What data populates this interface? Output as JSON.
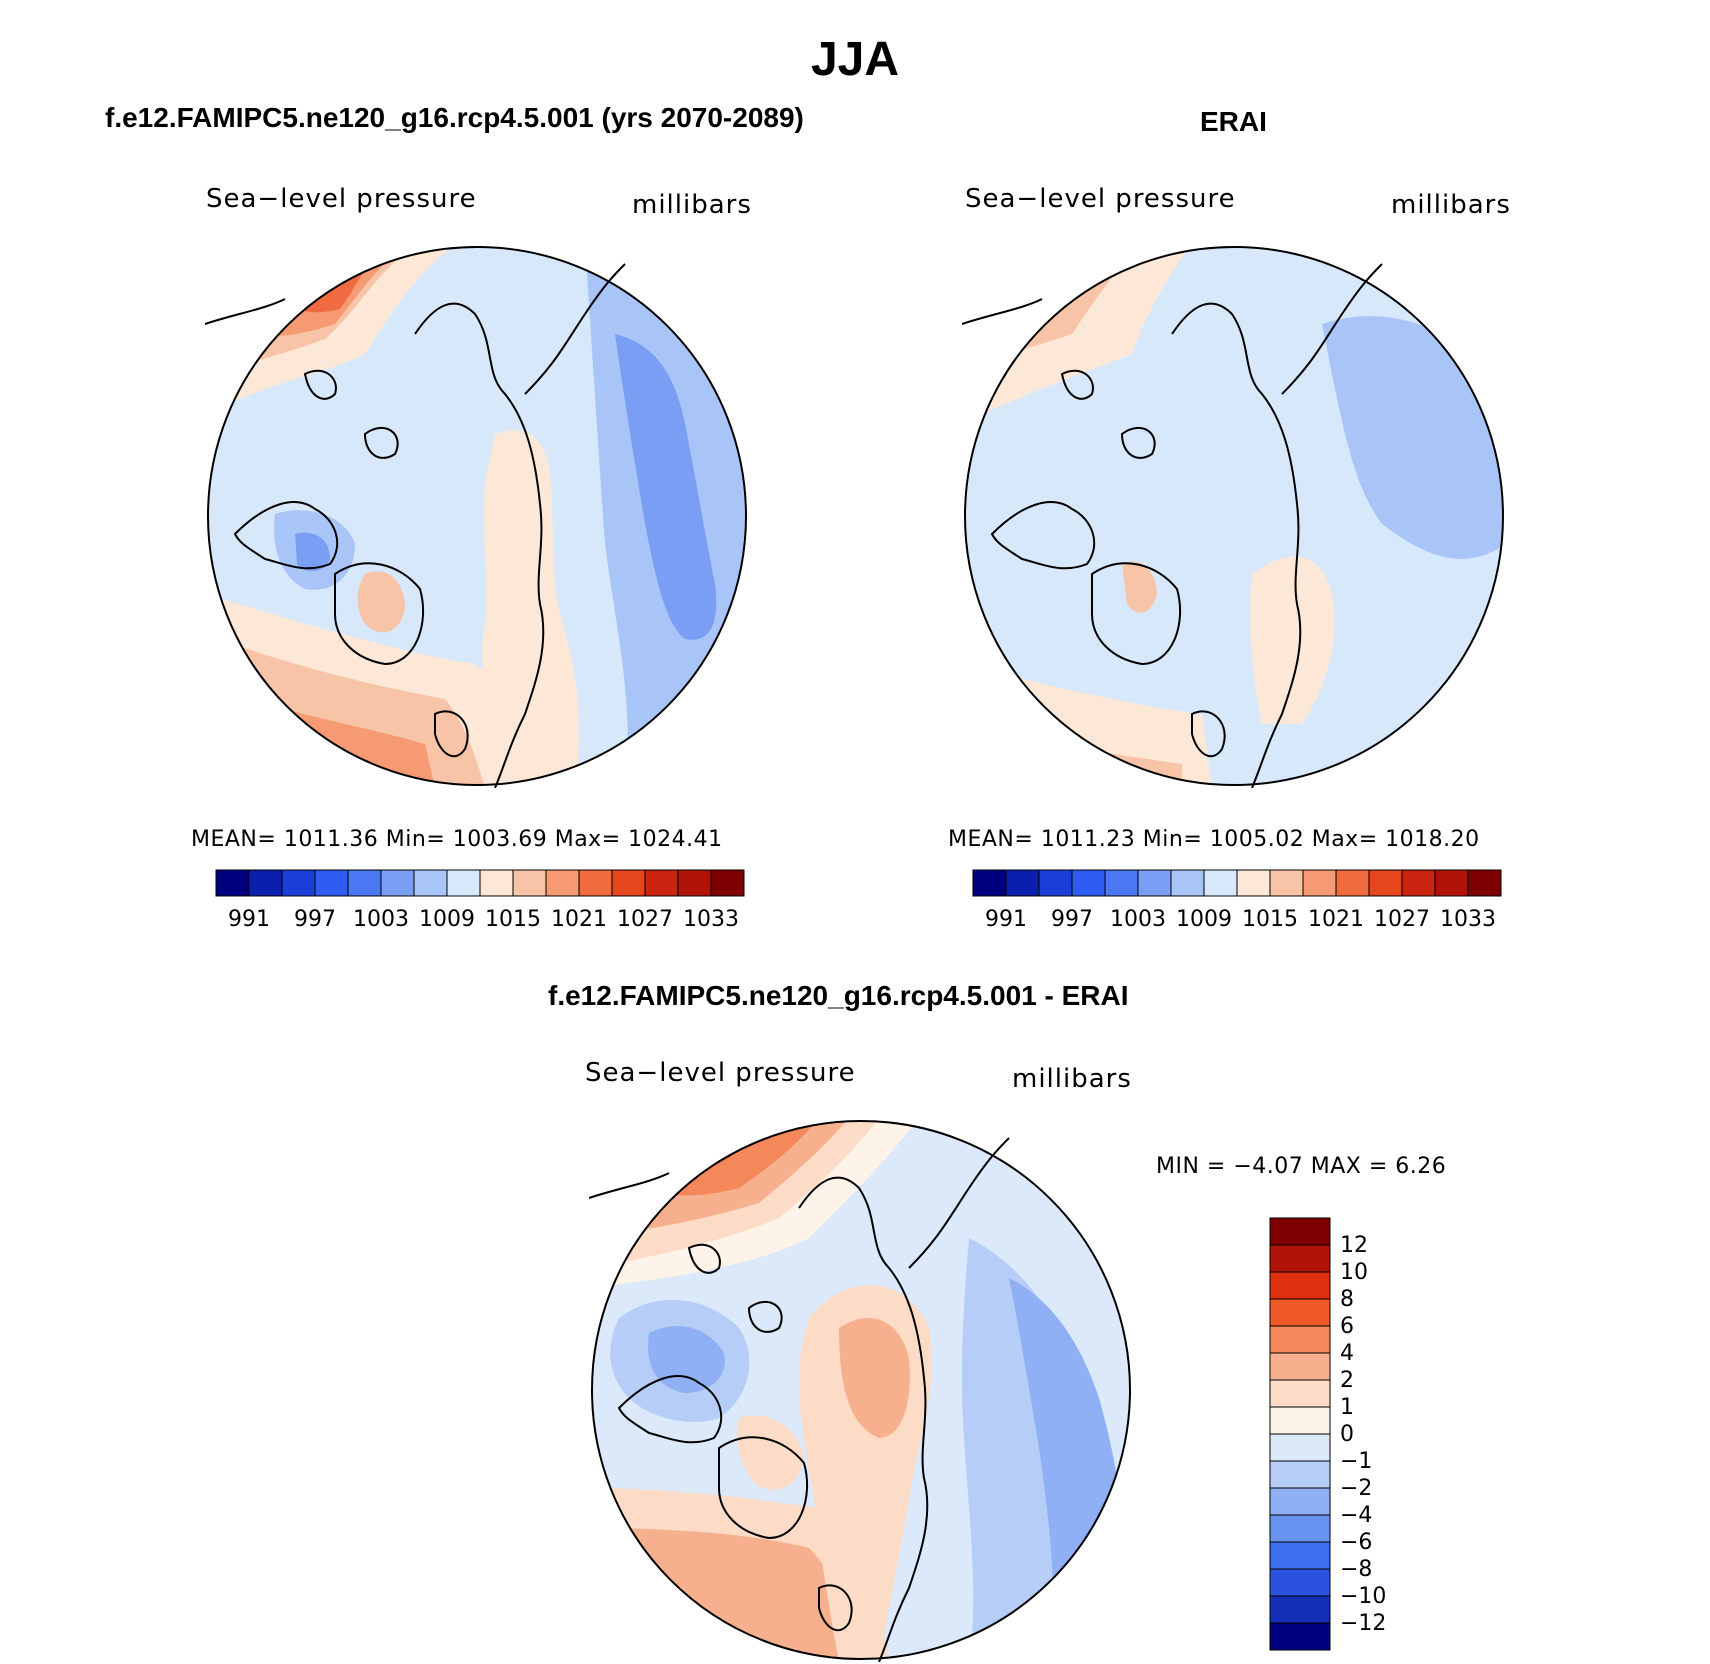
{
  "title": "JJA",
  "panels": [
    {
      "name": "model",
      "title": "f.e12.FAMIPC5.ne120_g16.rcp4.5.001 (yrs 2070-2089)",
      "variable": "Sea−level pressure",
      "units": "millibars",
      "stats": "MEAN=  1011.36   Min=  1003.69   Max=  1024.41"
    },
    {
      "name": "obs",
      "title": "ERAI",
      "variable": "Sea−level pressure",
      "units": "millibars",
      "stats": "MEAN=  1011.23   Min=  1005.02   Max=  1018.20"
    }
  ],
  "difference": {
    "title": "f.e12.FAMIPC5.ne120_g16.rcp4.5.001 - ERAI",
    "variable": "Sea−level pressure",
    "units": "millibars",
    "stats": "MIN =   −4.07  MAX =    6.26"
  },
  "abs_colorbar": {
    "colors": [
      "#00007f",
      "#0a1fad",
      "#1c3ed8",
      "#2e5cf0",
      "#4a78f2",
      "#7a9ef4",
      "#a9c4f7",
      "#d8e8fb",
      "#fde8d8",
      "#f8c4a8",
      "#f59a72",
      "#f06c40",
      "#e5461c",
      "#c92510",
      "#b01308",
      "#7f0000"
    ],
    "tick_labels": [
      "991",
      "997",
      "1003",
      "1009",
      "1015",
      "1021",
      "1027",
      "1033"
    ]
  },
  "diff_colorbar": {
    "colors": [
      "#7f0000",
      "#b01308",
      "#e0300f",
      "#f05a28",
      "#f4885a",
      "#f7b08e",
      "#fcdcc6",
      "#fdf3e8",
      "#dbe9fb",
      "#b6cdf7",
      "#8fb0f4",
      "#6892f0",
      "#3f6ff0",
      "#2a52de",
      "#152fb8",
      "#00007f"
    ],
    "tick_labels": [
      "12",
      "10",
      "8",
      "6",
      "4",
      "2",
      "1",
      "0",
      "−1",
      "−2",
      "−4",
      "−6",
      "−8",
      "−10",
      "−12"
    ]
  }
}
